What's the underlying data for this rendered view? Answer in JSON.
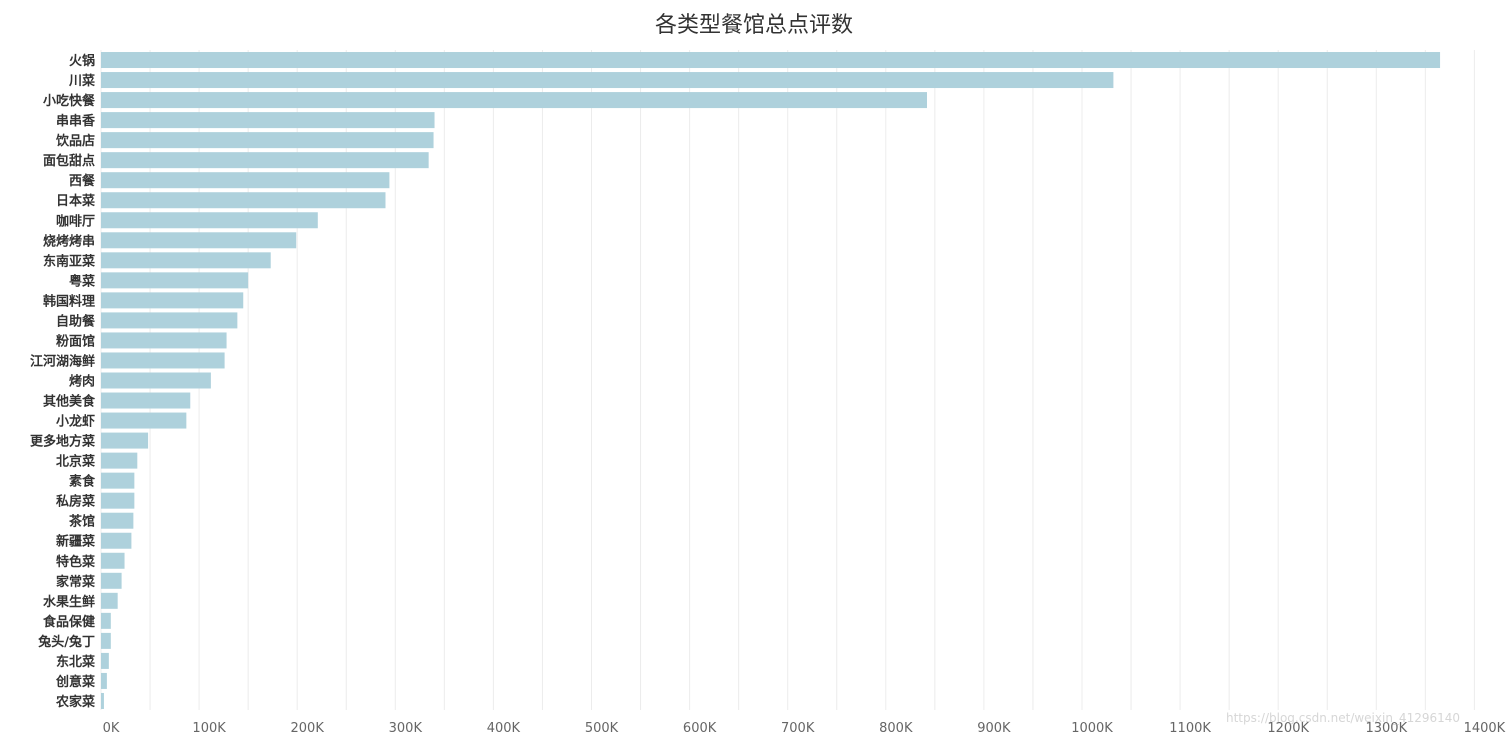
{
  "chart_data": {
    "type": "bar",
    "orientation": "horizontal",
    "title": "各类型餐馆总点评数",
    "xlabel": "",
    "ylabel": "",
    "xlim": [
      0,
      1400000
    ],
    "x_ticks": [
      0,
      100000,
      200000,
      300000,
      400000,
      500000,
      600000,
      700000,
      800000,
      900000,
      1000000,
      1100000,
      1200000,
      1300000,
      1400000
    ],
    "x_tick_labels": [
      "0K",
      "100K",
      "200K",
      "300K",
      "400K",
      "500K",
      "600K",
      "700K",
      "800K",
      "900K",
      "1000K",
      "1100K",
      "1200K",
      "1300K",
      "1400K"
    ],
    "grid": true,
    "bar_color": "#aed1dc",
    "categories": [
      "火锅",
      "川菜",
      "小吃快餐",
      "串串香",
      "饮品店",
      "面包甜点",
      "西餐",
      "日本菜",
      "咖啡厅",
      "烧烤烤串",
      "东南亚菜",
      "粤菜",
      "韩国料理",
      "自助餐",
      "粉面馆",
      "江河湖海鲜",
      "烤肉",
      "其他美食",
      "小龙虾",
      "更多地方菜",
      "北京菜",
      "素食",
      "私房菜",
      "茶馆",
      "新疆菜",
      "特色菜",
      "家常菜",
      "水果生鲜",
      "食品保健",
      "兔头/兔丁",
      "东北菜",
      "创意菜",
      "农家菜"
    ],
    "values": [
      1365000,
      1032000,
      842000,
      340000,
      339000,
      334000,
      294000,
      290000,
      221000,
      199000,
      173000,
      150000,
      145000,
      139000,
      128000,
      126000,
      112000,
      91000,
      87000,
      48000,
      37000,
      34000,
      34000,
      33000,
      31000,
      24000,
      21000,
      17000,
      10000,
      10000,
      8000,
      6000,
      3000
    ]
  },
  "watermark": "https://blog.csdn.net/weixin_41296140"
}
